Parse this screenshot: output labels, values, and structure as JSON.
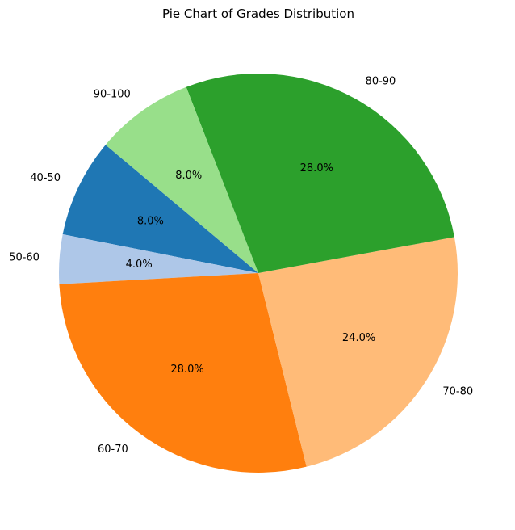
{
  "chart_data": {
    "type": "pie",
    "title": "Pie Chart of Grades Distribution",
    "categories": [
      "40-50",
      "50-60",
      "60-70",
      "70-80",
      "80-90",
      "90-100"
    ],
    "values": [
      8.0,
      4.0,
      28.0,
      24.0,
      28.0,
      8.0
    ],
    "percent_labels": [
      "8.0%",
      "4.0%",
      "28.0%",
      "24.0%",
      "28.0%",
      "8.0%"
    ],
    "colors": [
      "#1f77b4",
      "#aec7e8",
      "#ff7f0e",
      "#ffbb78",
      "#2ca02c",
      "#98df8a"
    ],
    "start_angle_deg": 140,
    "direction": "counterclockwise",
    "legend": "none"
  }
}
